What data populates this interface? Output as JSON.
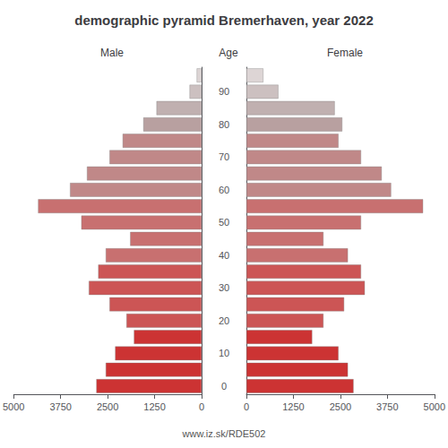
{
  "chart_data": {
    "type": "bar",
    "orientation": "horizontal",
    "title": "demographic pyramid Bremerhaven, year 2022",
    "ylabel": "Age",
    "annotations": [
      "www.iz.sk/RDE502"
    ],
    "categories": [
      "0",
      null,
      "10",
      null,
      "20",
      null,
      "30",
      null,
      "40",
      null,
      "50",
      null,
      "60",
      null,
      "70",
      null,
      "80",
      null,
      "90",
      null
    ],
    "series": [
      {
        "name": "Male",
        "values": [
          2800,
          2550,
          2300,
          1800,
          2000,
          2450,
          3000,
          2750,
          2550,
          1900,
          3200,
          4350,
          3500,
          3050,
          2450,
          2100,
          1550,
          1200,
          320,
          130
        ],
        "colors": [
          "#cc3333",
          "#cc3333",
          "#cc3333",
          "#cc3333",
          "#cc5555",
          "#cc5555",
          "#cc5555",
          "#cc5555",
          "#c87070",
          "#c87070",
          "#c87070",
          "#c87070",
          "#c08888",
          "#c08888",
          "#c08888",
          "#c08888",
          "#b8a0a0",
          "#c0b0b0",
          "#ccc0c0",
          "#ddd5d5"
        ]
      },
      {
        "name": "Female",
        "values": [
          2850,
          2700,
          2450,
          1750,
          2050,
          2600,
          3150,
          3050,
          2700,
          2050,
          3050,
          4700,
          3850,
          3600,
          3050,
          2450,
          2550,
          2350,
          850,
          450
        ],
        "colors": [
          "#cc3333",
          "#cc3333",
          "#cc3333",
          "#cc3333",
          "#cc5555",
          "#cc5555",
          "#cc5555",
          "#cc5555",
          "#c87070",
          "#c87070",
          "#c87070",
          "#c87070",
          "#c08888",
          "#c08888",
          "#c08888",
          "#c08888",
          "#b8a0a0",
          "#c0b0b0",
          "#ccc0c0",
          "#ddd5d5"
        ]
      }
    ],
    "xlim": [
      0,
      5000
    ],
    "xticks": [
      0,
      1250,
      2500,
      3750,
      5000
    ],
    "grid": false
  }
}
